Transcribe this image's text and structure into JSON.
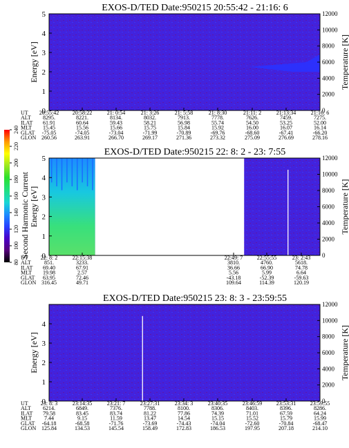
{
  "chart_data": {
    "type": "heatmap",
    "colorbar": {
      "label": "Second Harmonic Current",
      "ticks": [
        80,
        100,
        120,
        140,
        160,
        180,
        200,
        220,
        240
      ],
      "colors": [
        "#000000",
        "#55007a",
        "#4a00c8",
        "#2640ff",
        "#1c8cff",
        "#18d6d6",
        "#22e07a",
        "#2ce02c",
        "#9ce820",
        "#ffff00",
        "#ff9a00",
        "#ff0000"
      ]
    },
    "panels": [
      {
        "title": "EXOS-D/TED   Date:950215  20:55:42 - 21:16: 6",
        "ylabel": "Energy [eV]",
        "ylabel_right": "Temperature [K]",
        "ylim": [
          0,
          5
        ],
        "yticks": [
          0,
          1,
          2,
          3,
          4,
          5
        ],
        "y2ticks": [
          0,
          2000,
          4000,
          6000,
          8000,
          10000,
          12000
        ],
        "gaps": [],
        "streaks": [],
        "green_block": null,
        "blue_patch": true,
        "orbit": {
          "labels": [
            "UT",
            "ALT",
            "ILAT",
            "MLT",
            "GLAT",
            "GLON"
          ],
          "columns": [
            [
              "20:55:42",
              "8295.",
              "61.91",
              "15.45",
              "-75.05",
              "260.56"
            ],
            [
              "20:58:22",
              "8221.",
              "60.64",
              "15.56",
              "-74.05",
              "263.91"
            ],
            [
              "21: 0:54",
              "8134.",
              "59.43",
              "15.66",
              "-73.04",
              "266.70"
            ],
            [
              "21: 3:26",
              "8032.",
              "58.21",
              "15.75",
              "-71.99",
              "269.17"
            ],
            [
              "21: 5:58",
              "7913.",
              "56.98",
              "15.84",
              "-70.89",
              "271.36"
            ],
            [
              "21: 8:30",
              "7778.",
              "55.74",
              "15.92",
              "-69.76",
              "273.32"
            ],
            [
              "21:11: 2",
              "7626.",
              "54.50",
              "16.00",
              "-68.60",
              "275.09"
            ],
            [
              "21:13:34",
              "7459.",
              "53.25",
              "16.07",
              "-67.41",
              "276.69"
            ],
            [
              "21:16: 6",
              "7275.",
              "52.00",
              "16.14",
              "-66.20",
              "278.16"
            ]
          ]
        }
      },
      {
        "title": "EXOS-D/TED   Date:950215  22: 8: 2 - 23: 7:55",
        "ylabel": "Energy [eV]",
        "ylabel_right": "Temperature [K]",
        "ylim": [
          0,
          5
        ],
        "yticks": [
          0,
          1,
          2,
          3,
          4,
          5
        ],
        "y2ticks": [
          0,
          2000,
          4000,
          6000,
          8000,
          10000,
          12000
        ],
        "gaps": [
          [
            0.17,
            0.72
          ]
        ],
        "streaks": [
          0.882
        ],
        "green_block": [
          0,
          0.17
        ],
        "blue_patch": false,
        "orbit": {
          "labels": [
            "UT",
            "ALT",
            "ILAT",
            "MLT",
            "GLAT",
            "GLON"
          ],
          "columns": [
            [
              "22: 8: 2",
              "851.",
              "69.40",
              "19.98",
              "63.95",
              "316.45"
            ],
            [
              "22:15:38",
              "3233.",
              "67.91",
              "2.57",
              "72.46",
              "49.71"
            ],
            [
              "22:49: 7",
              "3810.",
              "36.66",
              "5.56",
              "-43.18",
              "109.64"
            ],
            [
              "22:55:55",
              "4760.",
              "66.90",
              "5.99",
              "-52.39",
              "114.39"
            ],
            [
              "23: 2:43",
              "5618.",
              "74.78",
              "6.64",
              "-59.63",
              "120.19"
            ]
          ]
        }
      },
      {
        "title": "EXOS-D/TED   Date:950215  23: 8: 3 - 23:59:55",
        "ylabel": "Energy [eV]",
        "ylabel_right": "Temperature [K]",
        "ylim": [
          0,
          5
        ],
        "yticks": [
          0,
          1,
          2,
          3,
          4
        ],
        "y2ticks": [
          0,
          2000,
          4000,
          6000,
          8000,
          10000,
          12000
        ],
        "gaps": [],
        "streaks": [
          0.345
        ],
        "green_block": null,
        "blue_patch": false,
        "orbit": {
          "labels": [
            "UT",
            "ALT",
            "ILAT",
            "MLT",
            "GLAT",
            "GLON"
          ],
          "columns": [
            [
              "23: 8: 3",
              "6214.",
              "79.58",
              "7.44",
              "-64.18",
              "125.84"
            ],
            [
              "23:14:35",
              "6849.",
              "83.45",
              "9.15",
              "-68.58",
              "134.53"
            ],
            [
              "23:21: 7",
              "7376.",
              "83.74",
              "11.59",
              "-71.76",
              "145.54"
            ],
            [
              "23:27:31",
              "7788.",
              "81.22",
              "13.47",
              "-73.69",
              "158.49"
            ],
            [
              "23:34: 3",
              "8100.",
              "77.86",
              "14.54",
              "-74.43",
              "172.83"
            ],
            [
              "23:40:35",
              "8306.",
              "74.39",
              "15.15",
              "-74.04",
              "186.53"
            ],
            [
              "23:46:59",
              "8403.",
              "71.01",
              "15.52",
              "-72.60",
              "197.95"
            ],
            [
              "23:53:31",
              "8396.",
              "67.59",
              "15.79",
              "-70.84",
              "207.18"
            ],
            [
              "23:59:55",
              "8286.",
              "64.24",
              "15.99",
              "-68.47",
              "214.10"
            ]
          ]
        }
      }
    ]
  }
}
